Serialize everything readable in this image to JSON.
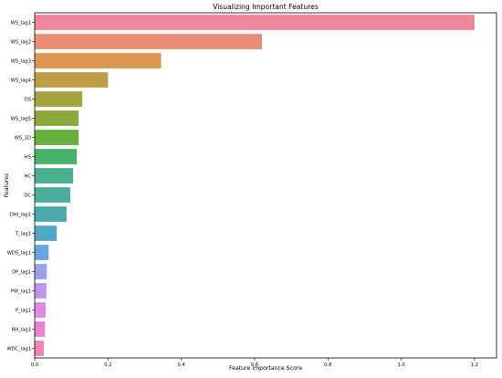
{
  "chart_data": {
    "type": "bar",
    "orientation": "horizontal",
    "title": "Visualizing Important Features",
    "xlabel": "Feature Importance Score",
    "ylabel": "Features",
    "xlim": [
      0,
      1.26
    ],
    "xticks": [
      "0.0",
      "0.2",
      "0.4",
      "0.6",
      "0.8",
      "1.0",
      "1.2"
    ],
    "grid": false,
    "categories": [
      "WS_lag1",
      "WS_lag2",
      "WS_lag3",
      "WS_lag4",
      "DS",
      "WS_lag5",
      "WS_1D",
      "HS",
      "HC",
      "DC",
      "DHI_lag1",
      "T_lag1",
      "WDS_lag1",
      "DP_lag1",
      "PW_lag1",
      "P_lag1",
      "RH_lag1",
      "WDC_lag1"
    ],
    "values": [
      1.2,
      0.62,
      0.345,
      0.2,
      0.13,
      0.12,
      0.12,
      0.115,
      0.105,
      0.097,
      0.087,
      0.06,
      0.038,
      0.033,
      0.032,
      0.03,
      0.028,
      0.025
    ],
    "colors": [
      "#ee8799",
      "#e98d76",
      "#d9974f",
      "#bf9e45",
      "#a8a43d",
      "#8ea83d",
      "#65b13d",
      "#45b169",
      "#48b08f",
      "#4aad9d",
      "#4caaad",
      "#4fa9c5",
      "#65a6e0",
      "#9aa0ea",
      "#bd97ec",
      "#e08ae4",
      "#e983cd",
      "#ec86b4"
    ]
  }
}
